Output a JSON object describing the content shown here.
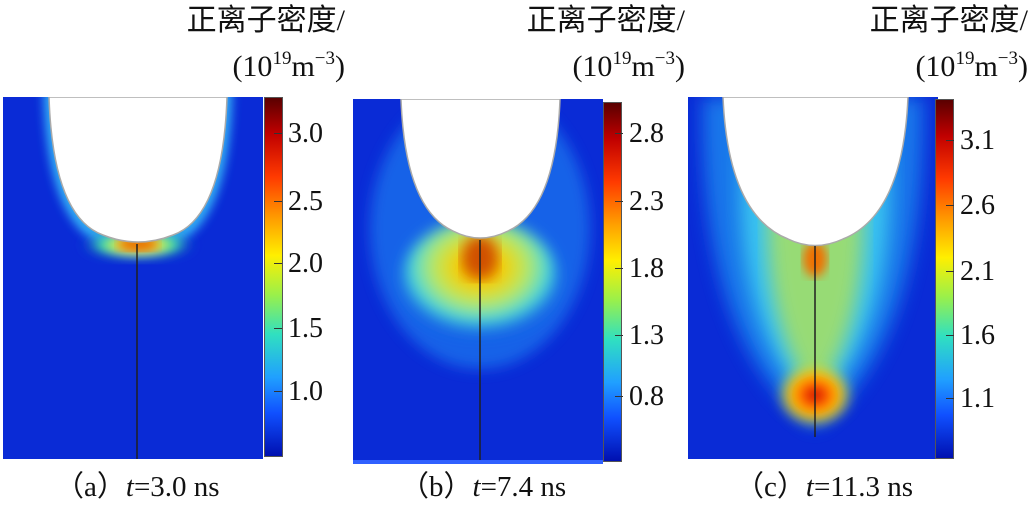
{
  "colorbar_title": "正离子密度/",
  "unit_base": "(10",
  "unit_exp": "19",
  "unit_mid": "m",
  "unit_exp2": "−3",
  "unit_close": ")",
  "panels": [
    {
      "caption_label": "（a）",
      "caption_var": "t",
      "caption_value": "=3.0 ns",
      "ticks": [
        "3.0",
        "2.5",
        "2.0",
        "1.5",
        "1.0"
      ]
    },
    {
      "caption_label": "（b）",
      "caption_var": "t",
      "caption_value": "=7.4 ns",
      "ticks": [
        "2.8",
        "2.3",
        "1.8",
        "1.3",
        "0.8"
      ]
    },
    {
      "caption_label": "（c）",
      "caption_var": "t",
      "caption_value": "=11.3 ns",
      "ticks": [
        "3.1",
        "2.6",
        "2.1",
        "1.6",
        "1.1"
      ]
    }
  ]
}
